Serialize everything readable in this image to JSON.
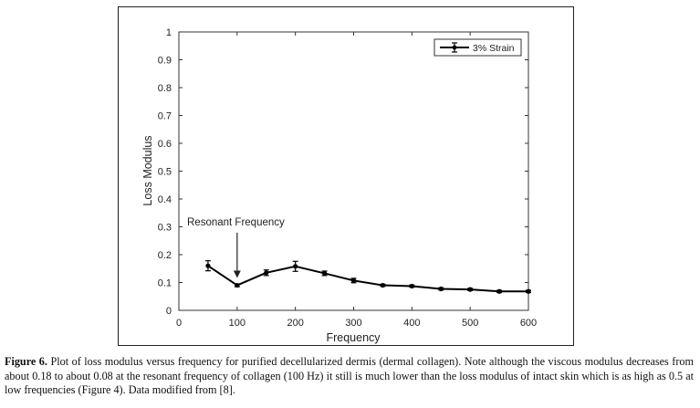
{
  "chart_data": {
    "type": "line",
    "xlabel": "Frequency",
    "ylabel": "Loss Modulus",
    "xlim": [
      0,
      600
    ],
    "ylim": [
      0,
      1
    ],
    "xticks": [
      "0",
      "100",
      "200",
      "300",
      "400",
      "500",
      "600"
    ],
    "yticks": [
      "0",
      "0.1",
      "0.2",
      "0.3",
      "0.4",
      "0.5",
      "0.6",
      "0.7",
      "0.8",
      "0.9",
      "1"
    ],
    "legend_position": "top-right",
    "grid": false,
    "series": [
      {
        "name": "3% Strain",
        "color": "#000000",
        "x": [
          50,
          100,
          150,
          200,
          250,
          300,
          350,
          400,
          450,
          500,
          550,
          600
        ],
        "y": [
          0.16,
          0.09,
          0.135,
          0.158,
          0.133,
          0.107,
          0.09,
          0.087,
          0.077,
          0.075,
          0.068,
          0.068
        ],
        "err": [
          0.018,
          0.005,
          0.01,
          0.018,
          0.008,
          0.008,
          0.004,
          0.004,
          0.004,
          0.004,
          0.004,
          0.004
        ]
      }
    ],
    "annotations": [
      {
        "text": "Resonant Frequency",
        "arrow_to": [
          100,
          0.09
        ]
      }
    ]
  },
  "caption": {
    "label": "Figure 6.",
    "text": " Plot of loss modulus versus frequency for purified decellularized dermis (dermal collagen). Note although the viscous modulus decreases from about 0.18 to about 0.08 at the resonant frequency of collagen (100 Hz) it still is much lower than the loss modulus of intact skin which is as high as 0.5 at low frequencies (Figure 4). Data modified from [8]."
  }
}
